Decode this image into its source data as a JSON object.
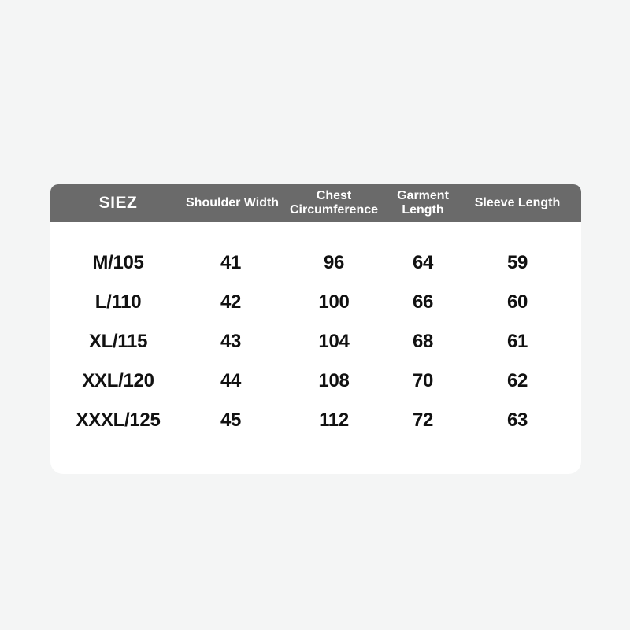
{
  "page": {
    "background_color": "#f4f5f5"
  },
  "size_chart": {
    "header_background": "#6a6a6a",
    "header_text_color": "#ffffff",
    "body_background": "#ffffff",
    "body_text_color": "#111111",
    "columns": [
      {
        "label": "SIEZ"
      },
      {
        "label": "Shoulder Width"
      },
      {
        "label": "Chest Circumference",
        "line1": "Chest",
        "line2": "Circumference"
      },
      {
        "label": "Garment Length",
        "line1": "Garment",
        "line2": "Length"
      },
      {
        "label": "Sleeve Length"
      }
    ],
    "rows": [
      {
        "size": "M/105",
        "shoulder_width": "41",
        "chest_circumference": "96",
        "garment_length": "64",
        "sleeve_length": "59"
      },
      {
        "size": "L/110",
        "shoulder_width": "42",
        "chest_circumference": "100",
        "garment_length": "66",
        "sleeve_length": "60"
      },
      {
        "size": "XL/115",
        "shoulder_width": "43",
        "chest_circumference": "104",
        "garment_length": "68",
        "sleeve_length": "61"
      },
      {
        "size": "XXL/120",
        "shoulder_width": "44",
        "chest_circumference": "108",
        "garment_length": "70",
        "sleeve_length": "62"
      },
      {
        "size": "XXXL/125",
        "shoulder_width": "45",
        "chest_circumference": "112",
        "garment_length": "72",
        "sleeve_length": "63"
      }
    ]
  },
  "chart_data": {
    "type": "table",
    "title": "",
    "columns": [
      "SIEZ",
      "Shoulder Width",
      "Chest Circumference",
      "Garment Length",
      "Sleeve Length"
    ],
    "rows": [
      [
        "M/105",
        41,
        96,
        64,
        59
      ],
      [
        "L/110",
        42,
        100,
        66,
        60
      ],
      [
        "XL/115",
        43,
        104,
        68,
        61
      ],
      [
        "XXL/120",
        44,
        108,
        70,
        62
      ],
      [
        "XXXL/125",
        45,
        112,
        72,
        63
      ]
    ]
  }
}
